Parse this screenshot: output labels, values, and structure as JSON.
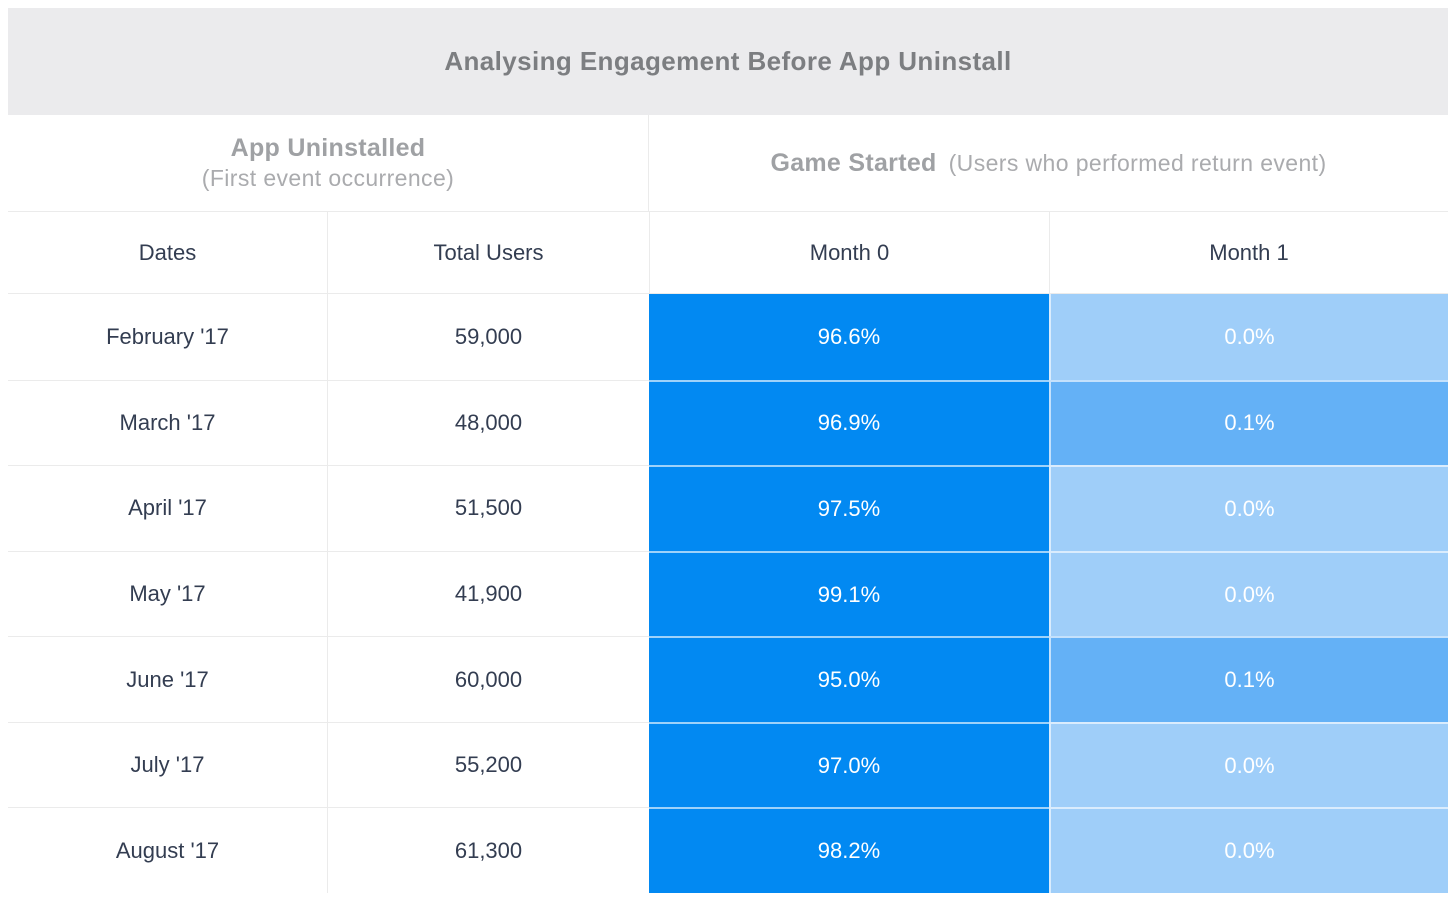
{
  "title": "Analysing Engagement Before App Uninstall",
  "groups": {
    "left": {
      "title": "App Uninstalled",
      "subtitle": "(First event occurrence)"
    },
    "right": {
      "title": "Game Started",
      "subtitle": "(Users who performed return event)"
    }
  },
  "columns": {
    "dates": "Dates",
    "total_users": "Total Users",
    "month0": "Month 0",
    "month1": "Month 1"
  },
  "colors": {
    "heat_high": "#0289f2",
    "heat_mid": "#64b1f6",
    "heat_low": "#9fcef9",
    "title_band_bg": "#ebebed",
    "grid_border": "#ebebeb",
    "dark_text": "#333d51",
    "muted_heading": "#9fa1a4",
    "percent_text": "#ffffff"
  },
  "chart_data": {
    "type": "table",
    "title": "Analysing Engagement Before App Uninstall",
    "column_groups": [
      {
        "label": "App Uninstalled",
        "note": "(First event occurrence)",
        "columns": [
          "Dates",
          "Total Users"
        ]
      },
      {
        "label": "Game Started",
        "note": "(Users who performed return event)",
        "columns": [
          "Month 0",
          "Month 1"
        ]
      }
    ],
    "columns": [
      "Dates",
      "Total Users",
      "Month 0",
      "Month 1"
    ],
    "rows": [
      {
        "date": "February '17",
        "total_users": "59,000",
        "month0": {
          "value": "96.6%",
          "level": "high"
        },
        "month1": {
          "value": "0.0%",
          "level": "low"
        }
      },
      {
        "date": "March '17",
        "total_users": "48,000",
        "month0": {
          "value": "96.9%",
          "level": "high"
        },
        "month1": {
          "value": "0.1%",
          "level": "mid"
        }
      },
      {
        "date": "April '17",
        "total_users": "51,500",
        "month0": {
          "value": "97.5%",
          "level": "high"
        },
        "month1": {
          "value": "0.0%",
          "level": "low"
        }
      },
      {
        "date": "May '17",
        "total_users": "41,900",
        "month0": {
          "value": "99.1%",
          "level": "high"
        },
        "month1": {
          "value": "0.0%",
          "level": "low"
        }
      },
      {
        "date": "June '17",
        "total_users": "60,000",
        "month0": {
          "value": "95.0%",
          "level": "high"
        },
        "month1": {
          "value": "0.1%",
          "level": "mid"
        }
      },
      {
        "date": "July '17",
        "total_users": "55,200",
        "month0": {
          "value": "97.0%",
          "level": "high"
        },
        "month1": {
          "value": "0.0%",
          "level": "low"
        }
      },
      {
        "date": "August '17",
        "total_users": "61,300",
        "month0": {
          "value": "98.2%",
          "level": "high"
        },
        "month1": {
          "value": "0.0%",
          "level": "low"
        }
      }
    ]
  }
}
